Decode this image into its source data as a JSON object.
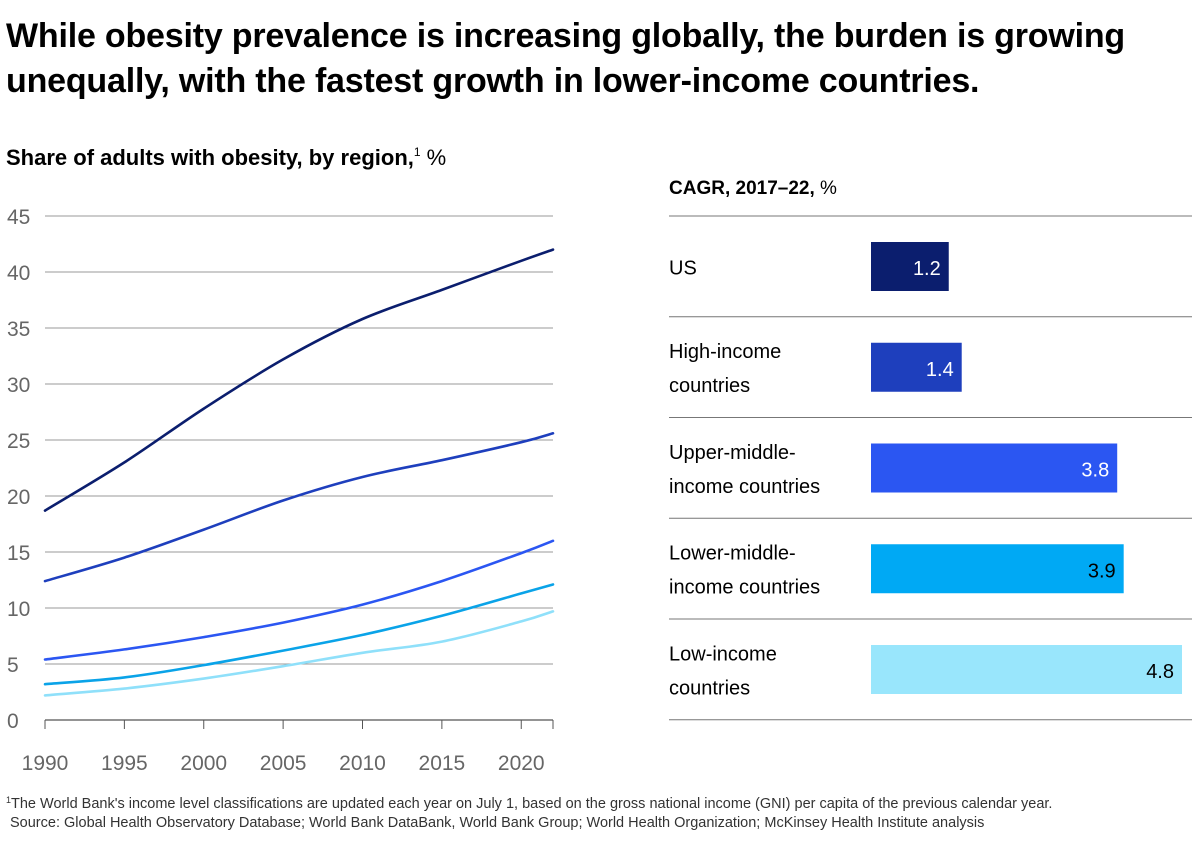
{
  "headline": "While obesity prevalence is increasing globally, the burden is growing unequally, with the fastest growth in lower-income countries.",
  "subtitle": {
    "text": "Share of adults with obesity, by region,",
    "footnote_ref": "1",
    "unit": " %"
  },
  "cagr_title": {
    "text": "CAGR, 2017–22,",
    "unit": " %"
  },
  "chart_data": [
    {
      "type": "line",
      "title": "Share of adults with obesity, by region, %",
      "xlim": [
        1990,
        2022
      ],
      "ylim": [
        0,
        45
      ],
      "xticks": [
        "1990",
        "1995",
        "2000",
        "2005",
        "2010",
        "2015",
        "2020"
      ],
      "yticks": [
        "0",
        "5",
        "10",
        "15",
        "20",
        "25",
        "30",
        "35",
        "40",
        "45"
      ],
      "x": [
        1990,
        1995,
        2000,
        2005,
        2010,
        2015,
        2020,
        2022
      ],
      "series": [
        {
          "name": "US",
          "color": "#0b1e6e",
          "values": [
            18.7,
            23.0,
            27.8,
            32.2,
            35.8,
            38.4,
            41.0,
            42.0
          ]
        },
        {
          "name": "High-income countries",
          "color": "#1e3fbd",
          "values": [
            12.4,
            14.5,
            17.0,
            19.6,
            21.7,
            23.2,
            24.8,
            25.6
          ]
        },
        {
          "name": "Upper-middle-income countries",
          "color": "#2b56f2",
          "values": [
            5.4,
            6.3,
            7.4,
            8.7,
            10.3,
            12.4,
            14.9,
            16.0
          ]
        },
        {
          "name": "Lower-middle-income countries",
          "color": "#0aa3e8",
          "values": [
            3.2,
            3.8,
            4.9,
            6.2,
            7.6,
            9.3,
            11.3,
            12.1
          ]
        },
        {
          "name": "Low-income countries",
          "color": "#8fe0fa",
          "values": [
            2.2,
            2.8,
            3.7,
            4.8,
            6.0,
            7.0,
            8.8,
            9.7
          ]
        }
      ]
    },
    {
      "type": "bar",
      "orientation": "horizontal",
      "title": "CAGR, 2017–22, %",
      "xlim": [
        0,
        4.8
      ],
      "categories": [
        {
          "line1": "US",
          "line2": ""
        },
        {
          "line1": "High-income",
          "line2": "countries"
        },
        {
          "line1": "Upper-middle-",
          "line2": "income countries"
        },
        {
          "line1": "Lower-middle-",
          "line2": "income countries"
        },
        {
          "line1": "Low-income",
          "line2": "countries"
        }
      ],
      "values": [
        1.2,
        1.4,
        3.8,
        3.9,
        4.8
      ],
      "labels": [
        "1.2",
        "1.4",
        "3.8",
        "3.9",
        "4.8"
      ],
      "colors": [
        "#0b1e6e",
        "#1e3fbd",
        "#2b56f2",
        "#00a9f4",
        "#99e6fc"
      ],
      "label_colors": [
        "#ffffff",
        "#ffffff",
        "#ffffff",
        "#000000",
        "#000000"
      ]
    }
  ],
  "footnote": {
    "ref": "1",
    "text": "The World Bank's income level classifications are updated each year on July 1, based on the gross national income (GNI) per capita of the previous calendar year.",
    "source": "Source: Global Health Observatory Database; World Bank DataBank, World Bank Group; World Health Organization; McKinsey Health Institute analysis"
  }
}
